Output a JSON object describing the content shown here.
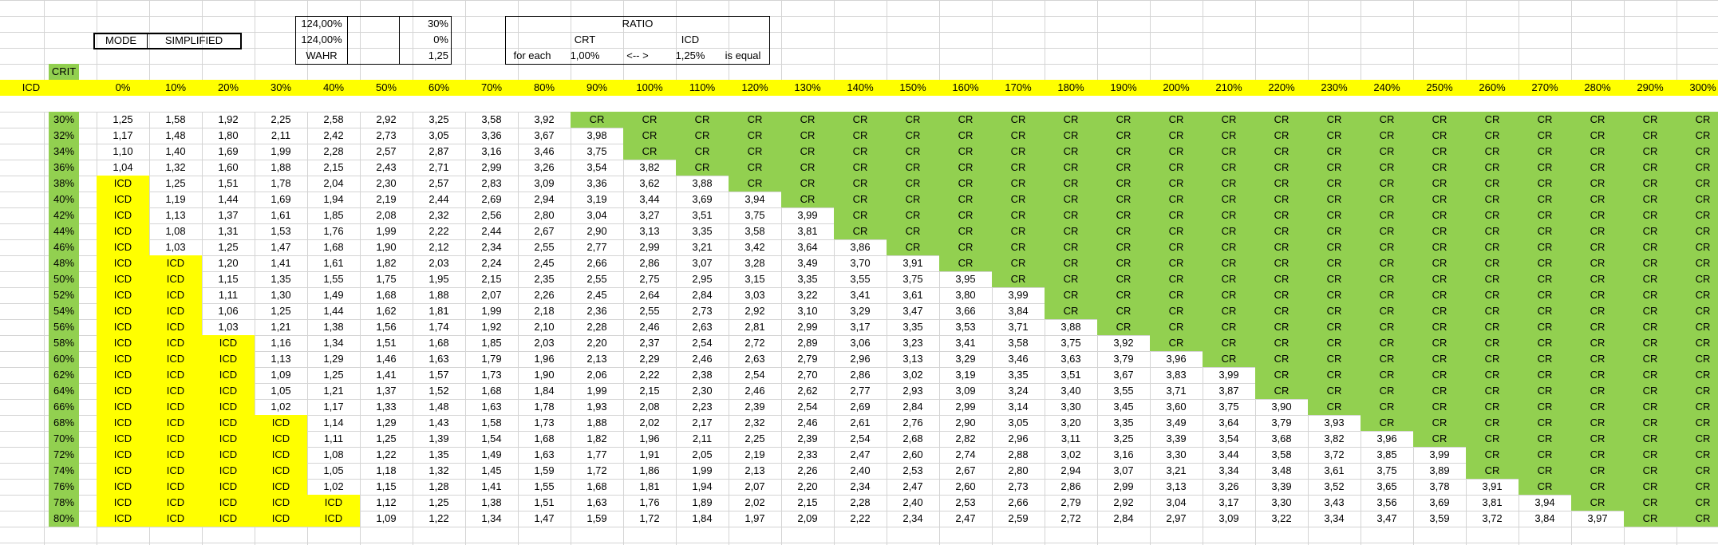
{
  "colors": {
    "yellow": "#ffff00",
    "green": "#92d050"
  },
  "mode": {
    "label": "MODE",
    "value": "SIMPLIFIED"
  },
  "params": [
    {
      "a": "124,00%",
      "b": "30%"
    },
    {
      "a": "124,00%",
      "b": "0%"
    },
    {
      "a": "WAHR",
      "b": "1,25"
    }
  ],
  "ratio": {
    "title": "RATIO",
    "crt_label": "CRT",
    "icd_label": "ICD",
    "for_each": "for each",
    "crt_value": "1,00%",
    "arrow": "<-- >",
    "icd_value": "1,25%",
    "is_equal": "is equal"
  },
  "crit_label": "CRIT",
  "icd_row_label": "ICD",
  "col_headers": [
    "0%",
    "10%",
    "20%",
    "30%",
    "40%",
    "50%",
    "60%",
    "70%",
    "80%",
    "90%",
    "100%",
    "110%",
    "120%",
    "130%",
    "140%",
    "150%",
    "160%",
    "170%",
    "180%",
    "190%",
    "200%",
    "210%",
    "220%",
    "230%",
    "240%",
    "250%",
    "260%",
    "270%",
    "280%",
    "290%",
    "300%"
  ],
  "row_headers": [
    "30%",
    "32%",
    "34%",
    "36%",
    "38%",
    "40%",
    "42%",
    "44%",
    "46%",
    "48%",
    "50%",
    "52%",
    "54%",
    "56%",
    "58%",
    "60%",
    "62%",
    "64%",
    "66%",
    "68%",
    "70%",
    "72%",
    "74%",
    "76%",
    "78%",
    "80%"
  ],
  "rows": [
    [
      "1,25",
      "1,58",
      "1,92",
      "2,25",
      "2,58",
      "2,92",
      "3,25",
      "3,58",
      "3,92"
    ],
    [
      "1,17",
      "1,48",
      "1,80",
      "2,11",
      "2,42",
      "2,73",
      "3,05",
      "3,36",
      "3,67",
      "3,98"
    ],
    [
      "1,10",
      "1,40",
      "1,69",
      "1,99",
      "2,28",
      "2,57",
      "2,87",
      "3,16",
      "3,46",
      "3,75"
    ],
    [
      "1,04",
      "1,32",
      "1,60",
      "1,88",
      "2,15",
      "2,43",
      "2,71",
      "2,99",
      "3,26",
      "3,54",
      "3,82"
    ],
    [
      "ICD",
      "1,25",
      "1,51",
      "1,78",
      "2,04",
      "2,30",
      "2,57",
      "2,83",
      "3,09",
      "3,36",
      "3,62",
      "3,88"
    ],
    [
      "ICD",
      "1,19",
      "1,44",
      "1,69",
      "1,94",
      "2,19",
      "2,44",
      "2,69",
      "2,94",
      "3,19",
      "3,44",
      "3,69",
      "3,94"
    ],
    [
      "ICD",
      "1,13",
      "1,37",
      "1,61",
      "1,85",
      "2,08",
      "2,32",
      "2,56",
      "2,80",
      "3,04",
      "3,27",
      "3,51",
      "3,75",
      "3,99"
    ],
    [
      "ICD",
      "1,08",
      "1,31",
      "1,53",
      "1,76",
      "1,99",
      "2,22",
      "2,44",
      "2,67",
      "2,90",
      "3,13",
      "3,35",
      "3,58",
      "3,81"
    ],
    [
      "ICD",
      "1,03",
      "1,25",
      "1,47",
      "1,68",
      "1,90",
      "2,12",
      "2,34",
      "2,55",
      "2,77",
      "2,99",
      "3,21",
      "3,42",
      "3,64",
      "3,86"
    ],
    [
      "ICD",
      "ICD",
      "1,20",
      "1,41",
      "1,61",
      "1,82",
      "2,03",
      "2,24",
      "2,45",
      "2,66",
      "2,86",
      "3,07",
      "3,28",
      "3,49",
      "3,70",
      "3,91"
    ],
    [
      "ICD",
      "ICD",
      "1,15",
      "1,35",
      "1,55",
      "1,75",
      "1,95",
      "2,15",
      "2,35",
      "2,55",
      "2,75",
      "2,95",
      "3,15",
      "3,35",
      "3,55",
      "3,75",
      "3,95"
    ],
    [
      "ICD",
      "ICD",
      "1,11",
      "1,30",
      "1,49",
      "1,68",
      "1,88",
      "2,07",
      "2,26",
      "2,45",
      "2,64",
      "2,84",
      "3,03",
      "3,22",
      "3,41",
      "3,61",
      "3,80",
      "3,99"
    ],
    [
      "ICD",
      "ICD",
      "1,06",
      "1,25",
      "1,44",
      "1,62",
      "1,81",
      "1,99",
      "2,18",
      "2,36",
      "2,55",
      "2,73",
      "2,92",
      "3,10",
      "3,29",
      "3,47",
      "3,66",
      "3,84"
    ],
    [
      "ICD",
      "ICD",
      "1,03",
      "1,21",
      "1,38",
      "1,56",
      "1,74",
      "1,92",
      "2,10",
      "2,28",
      "2,46",
      "2,63",
      "2,81",
      "2,99",
      "3,17",
      "3,35",
      "3,53",
      "3,71",
      "3,88"
    ],
    [
      "ICD",
      "ICD",
      "ICD",
      "1,16",
      "1,34",
      "1,51",
      "1,68",
      "1,85",
      "2,03",
      "2,20",
      "2,37",
      "2,54",
      "2,72",
      "2,89",
      "3,06",
      "3,23",
      "3,41",
      "3,58",
      "3,75",
      "3,92"
    ],
    [
      "ICD",
      "ICD",
      "ICD",
      "1,13",
      "1,29",
      "1,46",
      "1,63",
      "1,79",
      "1,96",
      "2,13",
      "2,29",
      "2,46",
      "2,63",
      "2,79",
      "2,96",
      "3,13",
      "3,29",
      "3,46",
      "3,63",
      "3,79",
      "3,96"
    ],
    [
      "ICD",
      "ICD",
      "ICD",
      "1,09",
      "1,25",
      "1,41",
      "1,57",
      "1,73",
      "1,90",
      "2,06",
      "2,22",
      "2,38",
      "2,54",
      "2,70",
      "2,86",
      "3,02",
      "3,19",
      "3,35",
      "3,51",
      "3,67",
      "3,83",
      "3,99"
    ],
    [
      "ICD",
      "ICD",
      "ICD",
      "1,05",
      "1,21",
      "1,37",
      "1,52",
      "1,68",
      "1,84",
      "1,99",
      "2,15",
      "2,30",
      "2,46",
      "2,62",
      "2,77",
      "2,93",
      "3,09",
      "3,24",
      "3,40",
      "3,55",
      "3,71",
      "3,87"
    ],
    [
      "ICD",
      "ICD",
      "ICD",
      "1,02",
      "1,17",
      "1,33",
      "1,48",
      "1,63",
      "1,78",
      "1,93",
      "2,08",
      "2,23",
      "2,39",
      "2,54",
      "2,69",
      "2,84",
      "2,99",
      "3,14",
      "3,30",
      "3,45",
      "3,60",
      "3,75",
      "3,90"
    ],
    [
      "ICD",
      "ICD",
      "ICD",
      "ICD",
      "1,14",
      "1,29",
      "1,43",
      "1,58",
      "1,73",
      "1,88",
      "2,02",
      "2,17",
      "2,32",
      "2,46",
      "2,61",
      "2,76",
      "2,90",
      "3,05",
      "3,20",
      "3,35",
      "3,49",
      "3,64",
      "3,79",
      "3,93"
    ],
    [
      "ICD",
      "ICD",
      "ICD",
      "ICD",
      "1,11",
      "1,25",
      "1,39",
      "1,54",
      "1,68",
      "1,82",
      "1,96",
      "2,11",
      "2,25",
      "2,39",
      "2,54",
      "2,68",
      "2,82",
      "2,96",
      "3,11",
      "3,25",
      "3,39",
      "3,54",
      "3,68",
      "3,82",
      "3,96"
    ],
    [
      "ICD",
      "ICD",
      "ICD",
      "ICD",
      "1,08",
      "1,22",
      "1,35",
      "1,49",
      "1,63",
      "1,77",
      "1,91",
      "2,05",
      "2,19",
      "2,33",
      "2,47",
      "2,60",
      "2,74",
      "2,88",
      "3,02",
      "3,16",
      "3,30",
      "3,44",
      "3,58",
      "3,72",
      "3,85",
      "3,99"
    ],
    [
      "ICD",
      "ICD",
      "ICD",
      "ICD",
      "1,05",
      "1,18",
      "1,32",
      "1,45",
      "1,59",
      "1,72",
      "1,86",
      "1,99",
      "2,13",
      "2,26",
      "2,40",
      "2,53",
      "2,67",
      "2,80",
      "2,94",
      "3,07",
      "3,21",
      "3,34",
      "3,48",
      "3,61",
      "3,75",
      "3,89"
    ],
    [
      "ICD",
      "ICD",
      "ICD",
      "ICD",
      "1,02",
      "1,15",
      "1,28",
      "1,41",
      "1,55",
      "1,68",
      "1,81",
      "1,94",
      "2,07",
      "2,20",
      "2,34",
      "2,47",
      "2,60",
      "2,73",
      "2,86",
      "2,99",
      "3,13",
      "3,26",
      "3,39",
      "3,52",
      "3,65",
      "3,78",
      "3,91"
    ],
    [
      "ICD",
      "ICD",
      "ICD",
      "ICD",
      "ICD",
      "1,12",
      "1,25",
      "1,38",
      "1,51",
      "1,63",
      "1,76",
      "1,89",
      "2,02",
      "2,15",
      "2,28",
      "2,40",
      "2,53",
      "2,66",
      "2,79",
      "2,92",
      "3,04",
      "3,17",
      "3,30",
      "3,43",
      "3,56",
      "3,69",
      "3,81",
      "3,94"
    ],
    [
      "ICD",
      "ICD",
      "ICD",
      "ICD",
      "ICD",
      "1,09",
      "1,22",
      "1,34",
      "1,47",
      "1,59",
      "1,72",
      "1,84",
      "1,97",
      "2,09",
      "2,22",
      "2,34",
      "2,47",
      "2,59",
      "2,72",
      "2,84",
      "2,97",
      "3,09",
      "3,22",
      "3,34",
      "3,47",
      "3,59",
      "3,72",
      "3,84",
      "3,97"
    ]
  ],
  "fill_value": "CR"
}
